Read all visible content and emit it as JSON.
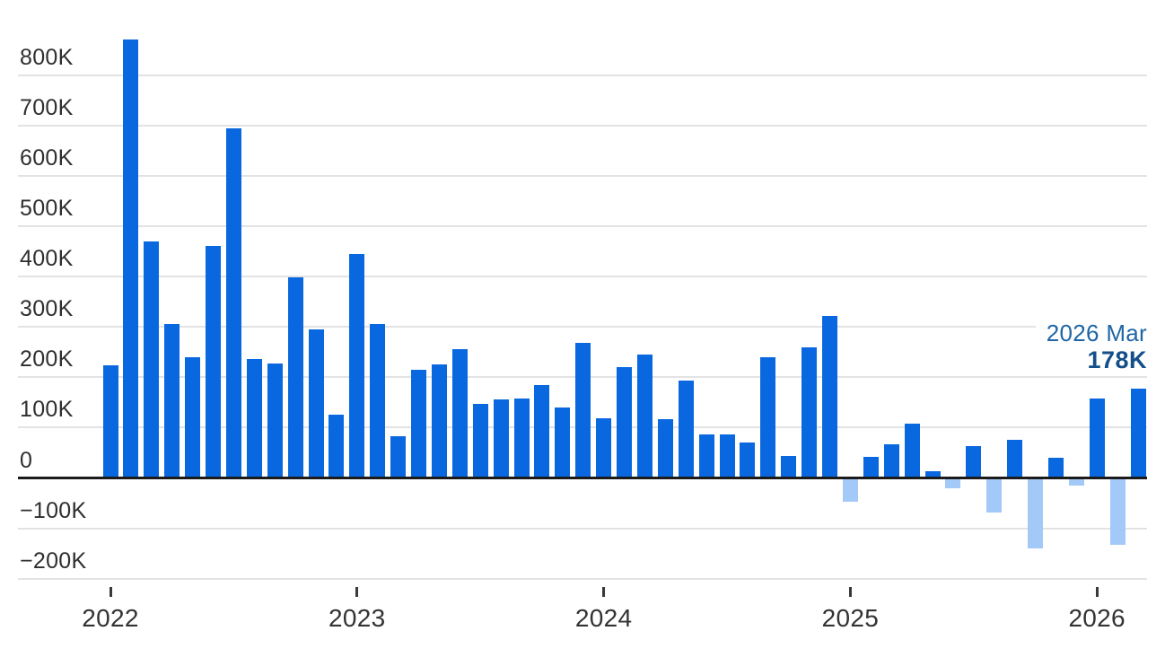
{
  "chart_data": {
    "type": "bar",
    "title": "",
    "unit": "K",
    "x": [
      "2022 Jan",
      "2022 Feb",
      "2022 Mar",
      "2022 Apr",
      "2022 May",
      "2022 Jun",
      "2022 Jul",
      "2022 Aug",
      "2022 Sep",
      "2022 Oct",
      "2022 Nov",
      "2022 Dec",
      "2023 Jan",
      "2023 Feb",
      "2023 Mar",
      "2023 Apr",
      "2023 May",
      "2023 Jun",
      "2023 Jul",
      "2023 Aug",
      "2023 Sep",
      "2023 Oct",
      "2023 Nov",
      "2023 Dec",
      "2024 Jan",
      "2024 Feb",
      "2024 Mar",
      "2024 Apr",
      "2024 May",
      "2024 Jun",
      "2024 Jul",
      "2024 Aug",
      "2024 Sep",
      "2024 Oct",
      "2024 Nov",
      "2024 Dec",
      "2025 Jan",
      "2025 Feb",
      "2025 Mar",
      "2025 Apr",
      "2025 May",
      "2025 Jun",
      "2025 Jul",
      "2025 Aug",
      "2025 Sep",
      "2025 Oct",
      "2025 Nov",
      "2025 Dec",
      "2026 Jan",
      "2026 Feb",
      "2026 Mar"
    ],
    "values": [
      224,
      870,
      470,
      305,
      240,
      460,
      695,
      237,
      227,
      398,
      295,
      126,
      444,
      306,
      82,
      215,
      226,
      256,
      147,
      156,
      157,
      185,
      140,
      268,
      118,
      221,
      245,
      117,
      193,
      86,
      87,
      70,
      239,
      44,
      260,
      322,
      -48,
      41,
      67,
      107,
      13,
      -21,
      64,
      -69,
      75,
      -140,
      40,
      -16,
      158,
      -132,
      178
    ],
    "y_axis": {
      "min": -200,
      "max": 800,
      "step": 100,
      "ticks": [
        {
          "value": 800,
          "label": "800K"
        },
        {
          "value": 700,
          "label": "700K"
        },
        {
          "value": 600,
          "label": "600K"
        },
        {
          "value": 500,
          "label": "500K"
        },
        {
          "value": 400,
          "label": "400K"
        },
        {
          "value": 300,
          "label": "300K"
        },
        {
          "value": 200,
          "label": "200K"
        },
        {
          "value": 100,
          "label": "100K"
        },
        {
          "value": 0,
          "label": "0"
        },
        {
          "value": -100,
          "label": "−100K"
        },
        {
          "value": -200,
          "label": "−200K"
        }
      ]
    },
    "x_axis": {
      "ticks": [
        {
          "month_index": 0,
          "label": "2022"
        },
        {
          "month_index": 12,
          "label": "2023"
        },
        {
          "month_index": 24,
          "label": "2024"
        },
        {
          "month_index": 36,
          "label": "2025"
        },
        {
          "month_index": 48,
          "label": "2026"
        }
      ]
    },
    "grid": "horizontal",
    "legend": "none",
    "annotation": {
      "date_label": "2026 Mar",
      "value_label": "178K"
    },
    "colors": {
      "positive_bar": "#0968e0",
      "negative_bar": "#a3c9f8",
      "annotation_date": "#1f66a6",
      "annotation_value": "#134f89",
      "axis_line": "#1b1b1b",
      "gridline": "#e3e3e3",
      "y_label": "#2f2f2f",
      "x_label": "#333333"
    }
  }
}
